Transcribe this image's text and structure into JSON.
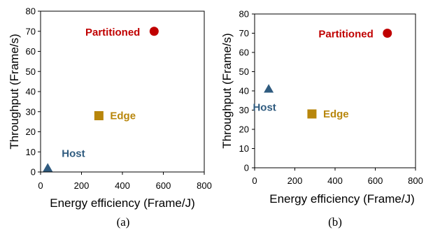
{
  "chart_data": [
    {
      "type": "scatter",
      "caption": "(a)",
      "xlabel": "Energy efficiency (Frame/J)",
      "ylabel": "Throughput (Frame/s)",
      "xlim": [
        0,
        800
      ],
      "ylim": [
        0,
        80
      ],
      "xticks": [
        0,
        200,
        400,
        600,
        800
      ],
      "yticks": [
        0,
        10,
        20,
        30,
        40,
        50,
        60,
        70,
        80
      ],
      "grid": false,
      "points": [
        {
          "label": "Host",
          "x": 35,
          "y": 2,
          "marker": "triangle",
          "color": "#2f5b7f"
        },
        {
          "label": "Edge",
          "x": 285,
          "y": 28,
          "marker": "square",
          "color": "#b8860b"
        },
        {
          "label": "Partitioned",
          "x": 555,
          "y": 70,
          "marker": "circle",
          "color": "#c00000"
        }
      ]
    },
    {
      "type": "scatter",
      "caption": "(b)",
      "xlabel": "Energy efficiency (Frame/J)",
      "ylabel": "Throughput (Frame/s)",
      "xlim": [
        0,
        800
      ],
      "ylim": [
        0,
        80
      ],
      "xticks": [
        0,
        200,
        400,
        600,
        800
      ],
      "yticks": [
        0,
        10,
        20,
        30,
        40,
        50,
        60,
        70,
        80
      ],
      "grid": false,
      "points": [
        {
          "label": "Host",
          "x": 70,
          "y": 41,
          "marker": "triangle",
          "color": "#2f5b7f"
        },
        {
          "label": "Edge",
          "x": 285,
          "y": 28,
          "marker": "square",
          "color": "#b8860b"
        },
        {
          "label": "Partitioned",
          "x": 660,
          "y": 70,
          "marker": "circle",
          "color": "#c00000"
        }
      ]
    }
  ]
}
